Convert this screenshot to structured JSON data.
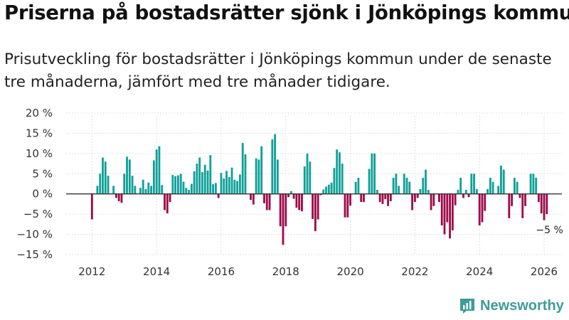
{
  "title": "Priserna på bostadsrätter sjönk i Jönköpings kommun",
  "subtitle": "Prisutveckling för bostadsrätter i Jönköpings kommun under de senaste tre månaderna, jämfört med tre månader tidigare.",
  "logo": {
    "text": "Newsworthy"
  },
  "colors": {
    "positive": "#10a09a",
    "negative": "#9e0a4a",
    "grid": "#d6d6d6",
    "zero": "#333333"
  },
  "chart_data": {
    "type": "bar",
    "title": "Priserna på bostadsrätter sjönk i Jönköpings kommun",
    "xlabel": "",
    "ylabel": "",
    "x_start": 2012.0,
    "step": 0.08333,
    "xlim": [
      2011.2,
      2026.55
    ],
    "ylim": [
      -15,
      20
    ],
    "yticks": [
      20,
      15,
      10,
      5,
      0,
      -5,
      -10,
      -15
    ],
    "ytick_labels": [
      "20 %",
      "15 %",
      "10 %",
      "5 %",
      "0 %",
      "−5 %",
      "−10 %",
      "−15 %"
    ],
    "xticks": [
      2012,
      2014,
      2016,
      2018,
      2020,
      2022,
      2024,
      2026
    ],
    "xtick_labels": [
      "2012",
      "2014",
      "2016",
      "2018",
      "2020",
      "2022",
      "2024",
      "2026"
    ],
    "grid": true,
    "values": [
      -6.3,
      0,
      2.0,
      5.0,
      9.0,
      8.0,
      4.5,
      0,
      2.0,
      -1.0,
      -1.8,
      -2.2,
      5.0,
      9.2,
      8.5,
      4.5,
      2.0,
      0,
      1.5,
      3.5,
      1.2,
      2.8,
      2.0,
      8.3,
      11.0,
      11.8,
      2.2,
      -4.0,
      -4.8,
      -2.0,
      4.7,
      4.4,
      4.6,
      5.0,
      3.0,
      1.5,
      1.0,
      2.5,
      5.6,
      7.5,
      9.0,
      5.4,
      7.2,
      5.8,
      9.6,
      2.4,
      2.7,
      -1.0,
      5.2,
      3.8,
      5.7,
      4.2,
      6.5,
      3.5,
      3.2,
      4.8,
      12.6,
      9.8,
      0,
      -1.5,
      -2.6,
      8.8,
      8.5,
      11.8,
      -2.3,
      -4.0,
      -4.0,
      13.5,
      14.8,
      8.5,
      -8.0,
      -12.6,
      -8.0,
      -0.8,
      0.7,
      -1.2,
      -3.4,
      -4.0,
      -4.3,
      6.8,
      10.0,
      8.0,
      -6.2,
      -9.2,
      -6.3,
      -0.3,
      1.1,
      1.8,
      2.3,
      2.8,
      6.4,
      11.0,
      10.3,
      7.5,
      -5.8,
      -5.8,
      -2.9,
      0,
      3.0,
      4.0,
      -2.0,
      -2.0,
      0,
      6.2,
      10.0,
      10.0,
      1.0,
      -2.0,
      -2.5,
      -1.3,
      -3.0,
      -1.8,
      4.0,
      5.0,
      2.0,
      0,
      5.0,
      4.0,
      3.0,
      -4.0,
      -2.0,
      -1.0,
      1.2,
      4.0,
      6.0,
      1.0,
      -4.0,
      -3.0,
      0,
      -2.0,
      -7.8,
      -10.0,
      -7.0,
      -11.0,
      -9.0,
      -2.8,
      1.0,
      4.0,
      -1.0,
      1.0,
      -0.8,
      5.0,
      5.0,
      1.2,
      -7.8,
      -7.0,
      -4.2,
      1.2,
      4.0,
      3.0,
      0,
      2.0,
      7.0,
      6.0,
      0,
      -6.0,
      -3.0,
      4.0,
      3.0,
      -1.0,
      -6.0,
      -3.0,
      0,
      5.0,
      5.0,
      4.0,
      -2.0,
      -4.8,
      -6.5,
      -5.0
    ],
    "annotations": [
      {
        "text": "−5 %",
        "x": 2025.92,
        "y": -5.0
      }
    ]
  }
}
